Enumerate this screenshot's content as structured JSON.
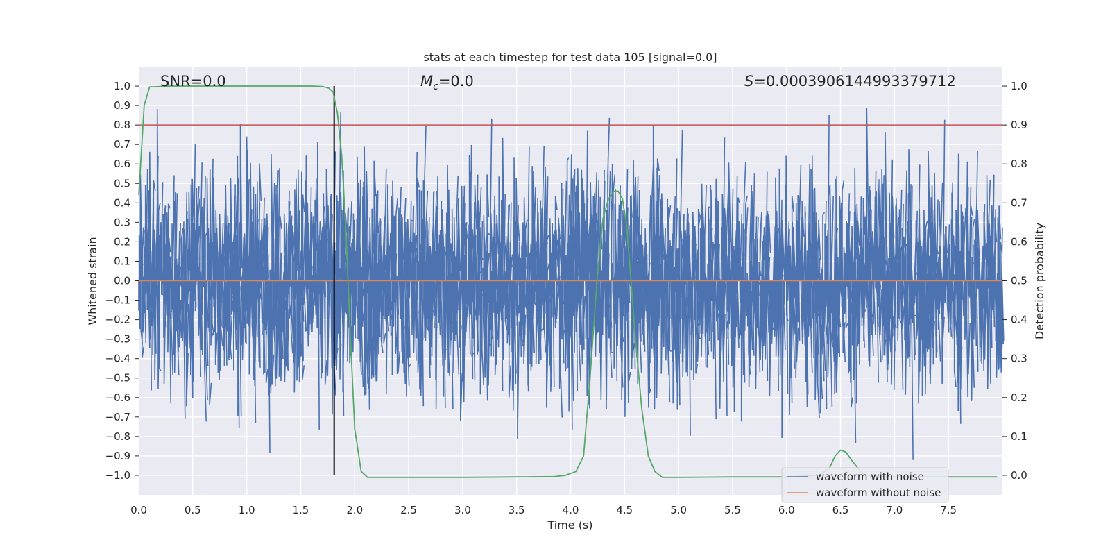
{
  "chart_data": {
    "type": "line",
    "title": "stats at each timestep for test data 105 [signal=0.0]",
    "xlabel": "Time (s)",
    "ylabel": "Whitened strain",
    "ylabel_right": "Detection probability",
    "xlim": [
      0.0,
      8.0
    ],
    "ylim": [
      -1.1,
      1.1
    ],
    "ylim_right": [
      -0.05,
      1.05
    ],
    "x_ticks": [
      "0.0",
      "0.5",
      "1.0",
      "1.5",
      "2.0",
      "2.5",
      "3.0",
      "3.5",
      "4.0",
      "4.5",
      "5.0",
      "5.5",
      "6.0",
      "6.5",
      "7.0",
      "7.5"
    ],
    "x_tick_values": [
      0.0,
      0.5,
      1.0,
      1.5,
      2.0,
      2.5,
      3.0,
      3.5,
      4.0,
      4.5,
      5.0,
      5.5,
      6.0,
      6.5,
      7.0,
      7.5
    ],
    "y_ticks": [
      "1.0",
      "0.9",
      "0.8",
      "0.7",
      "0.6",
      "0.5",
      "0.4",
      "0.3",
      "0.2",
      "0.1",
      "0.0",
      "−0.1",
      "−0.2",
      "−0.3",
      "−0.4",
      "−0.5",
      "−0.6",
      "−0.7",
      "−0.8",
      "−0.9",
      "−1.0"
    ],
    "y_tick_values": [
      1.0,
      0.9,
      0.8,
      0.7,
      0.6,
      0.5,
      0.4,
      0.3,
      0.2,
      0.1,
      0.0,
      -0.1,
      -0.2,
      -0.3,
      -0.4,
      -0.5,
      -0.6,
      -0.7,
      -0.8,
      -0.9,
      -1.0
    ],
    "y_ticks_right": [
      "1.0",
      "0.9",
      "0.8",
      "0.7",
      "0.6",
      "0.5",
      "0.4",
      "0.3",
      "0.2",
      "0.1",
      "0.0"
    ],
    "y_tick_values_right": [
      1.0,
      0.9,
      0.8,
      0.7,
      0.6,
      0.5,
      0.4,
      0.3,
      0.2,
      0.1,
      0.0
    ],
    "annotations": {
      "snr": "SNR=0.0",
      "mc_symbol": "M",
      "mc_subscript": "c",
      "mc_value": "=0.0",
      "s_symbol": "S",
      "s_value": "=0.0003906144993379712"
    },
    "threshold_right": 0.9,
    "vertical_line_x": 1.81,
    "noise_waveform": {
      "name": "waveform with noise",
      "color": "#4c72b0",
      "approx_amplitude_range": [
        -1.0,
        1.0
      ],
      "samples_per_second": 256
    },
    "clean_waveform": {
      "name": "waveform without noise",
      "color": "#dd8452",
      "value": 0.0
    },
    "detection_probability": {
      "color": "#55a868",
      "x": [
        0.0,
        0.05,
        0.1,
        0.3,
        0.6,
        1.0,
        1.4,
        1.6,
        1.7,
        1.76,
        1.8,
        1.84,
        1.88,
        1.92,
        1.96,
        2.0,
        2.06,
        2.12,
        2.2,
        2.6,
        3.0,
        3.5,
        3.85,
        3.95,
        4.05,
        4.12,
        4.18,
        4.25,
        4.3,
        4.35,
        4.4,
        4.44,
        4.48,
        4.52,
        4.56,
        4.6,
        4.66,
        4.72,
        4.78,
        4.85,
        5.0,
        5.5,
        6.0,
        6.3,
        6.4,
        6.45,
        6.5,
        6.55,
        6.6,
        6.7,
        6.8,
        7.0,
        7.5,
        7.95
      ],
      "y": [
        0.72,
        0.95,
        0.998,
        1.0,
        1.0,
        1.0,
        1.0,
        1.0,
        0.999,
        0.995,
        0.985,
        0.93,
        0.82,
        0.62,
        0.36,
        0.12,
        0.01,
        -0.005,
        -0.005,
        -0.005,
        -0.005,
        -0.004,
        -0.003,
        0.0,
        0.01,
        0.05,
        0.25,
        0.52,
        0.66,
        0.71,
        0.73,
        0.73,
        0.71,
        0.64,
        0.5,
        0.35,
        0.17,
        0.05,
        0.01,
        -0.005,
        -0.005,
        -0.004,
        -0.004,
        0.0,
        0.02,
        0.05,
        0.065,
        0.06,
        0.04,
        0.005,
        -0.004,
        -0.004,
        -0.004,
        -0.004
      ]
    },
    "legend": {
      "placement": "lower-right",
      "entries": [
        {
          "label": "waveform with noise",
          "color": "#4c72b0"
        },
        {
          "label": "waveform without noise",
          "color": "#dd8452"
        }
      ]
    },
    "colors": {
      "background": "#eaeaf2",
      "grid": "#ffffff",
      "threshold": "#c44e52",
      "vertical_line": "#000000"
    }
  }
}
